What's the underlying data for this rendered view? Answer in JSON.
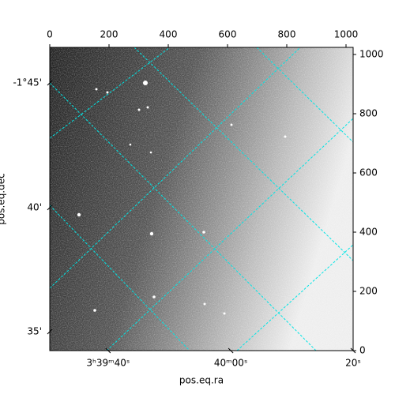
{
  "chart_data": {
    "type": "image",
    "xlabel": "pos.eq.ra",
    "ylabel": "pos.eq.dec",
    "xlim": [
      0,
      1024
    ],
    "ylim": [
      0,
      1024
    ],
    "xticks": [
      0,
      200,
      400,
      600,
      800,
      1000
    ],
    "yticks": [
      0,
      200,
      400,
      600,
      800,
      1000
    ],
    "world_xticks": [
      {
        "value": 197,
        "label": "3ʰ39ᵐ40ˢ"
      },
      {
        "value": 611,
        "label": "40ᵐ00ˢ"
      },
      {
        "value": 1024,
        "label": "20ˢ"
      }
    ],
    "world_yticks": [
      {
        "value": 904,
        "label": "-1°45'"
      },
      {
        "value": 483,
        "label": "40'"
      },
      {
        "value": 64,
        "label": "35'"
      }
    ],
    "grid": true,
    "grid_color": "#00e5e5"
  }
}
